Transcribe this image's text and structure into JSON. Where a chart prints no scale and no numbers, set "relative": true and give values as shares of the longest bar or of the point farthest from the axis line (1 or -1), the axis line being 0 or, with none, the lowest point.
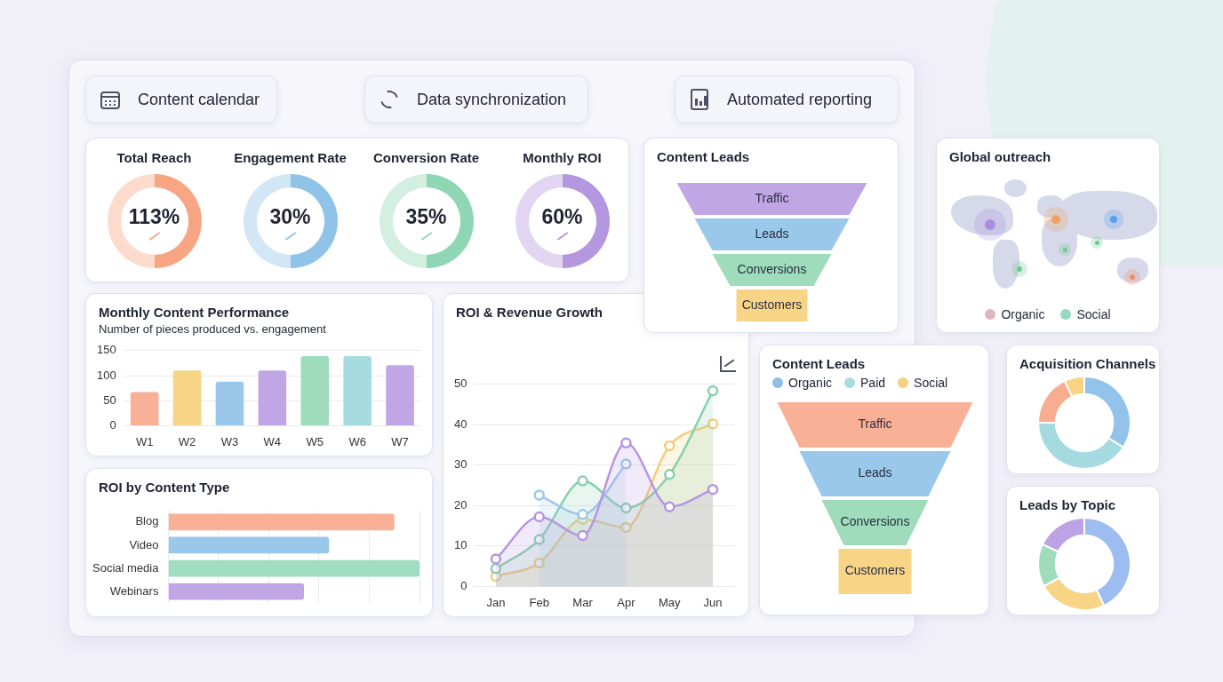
{
  "chart_data": [
    {
      "type": "other",
      "annotations": [
        "Content calendar",
        "Data synchronization",
        "Automated reporting"
      ]
    },
    {
      "type": "other",
      "categories": [
        "Total Reach",
        "Engagement Rate",
        "Conversion Rate",
        "Monthly ROI"
      ],
      "value_labels": [
        "113%",
        "30%",
        "35%",
        "60%"
      ]
    },
    {
      "type": "other",
      "title": "Content Leads",
      "categories": [
        "Traffic",
        "Leads",
        "Conversions",
        "Customers"
      ],
      "colors": [
        "#c1a6e6",
        "#9ac8ea",
        "#9edcbc",
        "#f8d486"
      ]
    },
    {
      "type": "other",
      "title": "Global outreach",
      "series": [
        {
          "name": "Organic",
          "color": "#e2b4c0"
        },
        {
          "name": "Social",
          "color": "#96d8c0"
        }
      ],
      "legend": "bottom"
    },
    {
      "type": "bar",
      "title": "Monthly Content Performance",
      "subtitle": "Number of pieces produced vs. engagement",
      "categories": [
        "W1",
        "W2",
        "W3",
        "W4",
        "W5",
        "W6",
        "W7"
      ],
      "values": [
        67,
        110,
        88,
        110,
        139,
        139,
        121
      ],
      "colors": [
        "#f8b096",
        "#f8d486",
        "#9ac8ea",
        "#c1a6e6",
        "#9edcbc",
        "#a6dce0",
        "#c1a6e6"
      ],
      "ylim": [
        0,
        150
      ],
      "yticks": [
        0,
        50,
        100,
        150
      ],
      "grid": "y"
    },
    {
      "type": "area",
      "title": "ROI & Revenue Growth",
      "categories": [
        "Jan",
        "Feb",
        "Mar",
        "Apr",
        "May",
        "Jun"
      ],
      "ylim": [
        0,
        50
      ],
      "yticks": [
        0,
        10,
        20,
        30,
        40,
        50
      ],
      "grid": "y",
      "marker": "circle",
      "series": [
        {
          "color": "#b596e0",
          "values": [
            6.8,
            17.2,
            12.6,
            35.5,
            19.7,
            24
          ]
        },
        {
          "color": "#9cc8ec",
          "values": [
            null,
            22.6,
            17.8,
            30.3,
            null,
            null
          ]
        },
        {
          "color": "#88d0ac",
          "values": [
            4.4,
            11.6,
            26.1,
            19.4,
            27.7,
            48.4
          ]
        },
        {
          "color": "#f5cd7a",
          "values": [
            2.5,
            5.8,
            16.6,
            14.6,
            34.8,
            40.2
          ]
        }
      ]
    },
    {
      "type": "bar",
      "orientation": "horizontal",
      "relative": true,
      "title": "ROI by Content Type",
      "categories": [
        "Blog",
        "Video",
        "Social media",
        "Webinars"
      ],
      "values": [
        0.9,
        0.64,
        1,
        0.54
      ],
      "colors": [
        "#f8b096",
        "#9ac8ea",
        "#a0dcc0",
        "#c1a6e6"
      ],
      "grid": "x"
    },
    {
      "type": "other",
      "title": "Content Leads",
      "categories": [
        "Traffic",
        "Leads",
        "Conversions",
        "Customers"
      ],
      "colors": [
        "#f8b096",
        "#9ac8ea",
        "#9edcbc",
        "#f8d486"
      ],
      "series": [
        {
          "name": "Organic",
          "color": "#8fbfe8",
          "values": [
            null,
            null,
            null,
            null
          ]
        },
        {
          "name": "Paid",
          "color": "#a8dde0",
          "values": [
            null,
            null,
            null,
            null
          ]
        },
        {
          "name": "Social",
          "color": "#f5d080",
          "values": [
            null,
            null,
            null,
            null
          ]
        }
      ],
      "legend": "top left"
    },
    {
      "type": "donut",
      "title": "Acquisition Channels",
      "categories": [
        null,
        null,
        null,
        null
      ],
      "values": [
        34,
        41,
        18,
        7
      ],
      "colors": [
        "#92c3ea",
        "#a5dbe0",
        "#f8ad90",
        "#f8d486"
      ]
    },
    {
      "type": "donut",
      "title": "Leads by Topic",
      "categories": [
        null,
        null,
        null,
        null
      ],
      "values": [
        43,
        24,
        15,
        18
      ],
      "colors": [
        "#9dbdf0",
        "#f8d486",
        "#9edcbc",
        "#bda3e6"
      ]
    }
  ]
}
